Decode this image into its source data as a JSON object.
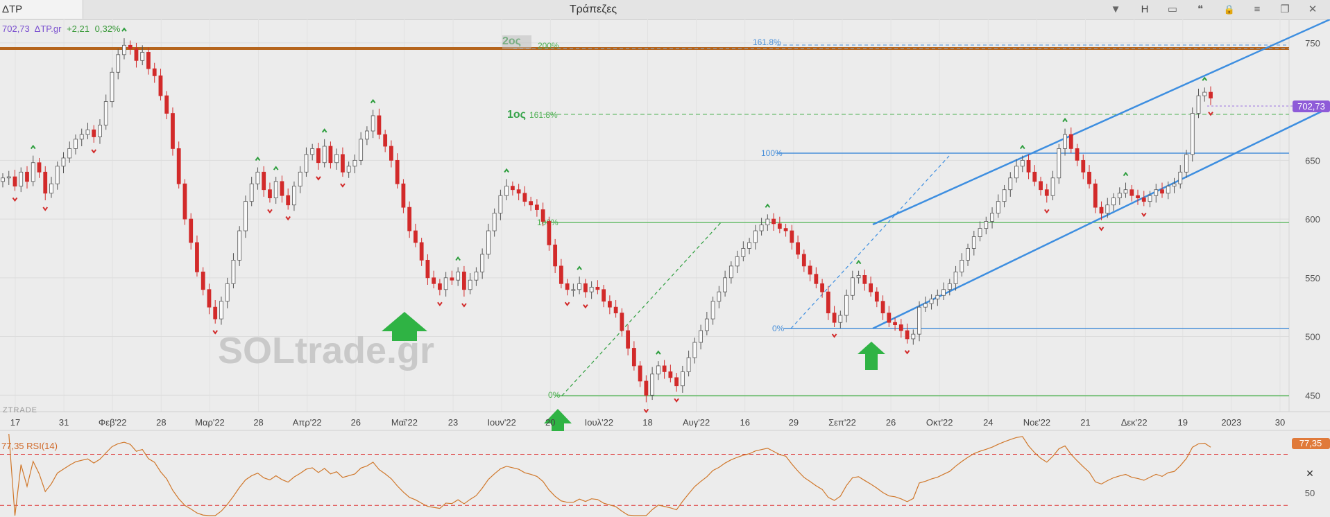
{
  "window": {
    "symbol_tab": "ΔTP",
    "title": "Τράπεζες",
    "buttons": {
      "dropdown": "▼",
      "h": "H",
      "window_icon": "▭",
      "quote_icon": "❝",
      "lock_icon": "🔒",
      "menu_icon": "≡",
      "restore_icon": "❐",
      "close_icon": "✕"
    }
  },
  "chart_data": [
    {
      "type": "candlestick",
      "header": {
        "last": "702,73",
        "symbol": "ΔTP.gr",
        "change": "+2,21",
        "change_pct": "0,32%"
      },
      "price_axis": {
        "ticks": [
          750,
          650,
          600,
          550,
          500,
          450
        ],
        "ylim": [
          436,
          770
        ]
      },
      "last_price_label": "702,73",
      "time_axis_labels": [
        "17",
        "31",
        "Φεβ'22",
        "28",
        "Μαρ'22",
        "28",
        "Απρ'22",
        "26",
        "Μαϊ'22",
        "23",
        "Ιουν'22",
        "20",
        "Ιουλ'22",
        "18",
        "Αυγ'22",
        "16",
        "29",
        "Σεπ'22",
        "26",
        "Οκτ'22",
        "24",
        "Νοε'22",
        "21",
        "Δεκ'22",
        "19",
        "2023",
        "30"
      ],
      "close_series": [
        635,
        636,
        628,
        640,
        632,
        648,
        640,
        622,
        630,
        645,
        652,
        660,
        668,
        672,
        676,
        670,
        680,
        700,
        725,
        740,
        748,
        745,
        735,
        742,
        728,
        722,
        705,
        690,
        660,
        630,
        600,
        580,
        555,
        540,
        525,
        515,
        530,
        545,
        565,
        590,
        615,
        630,
        640,
        625,
        618,
        632,
        620,
        612,
        628,
        640,
        655,
        660,
        648,
        662,
        648,
        655,
        640,
        645,
        650,
        668,
        675,
        688,
        672,
        662,
        650,
        630,
        610,
        590,
        580,
        565,
        550,
        545,
        540,
        550,
        548,
        555,
        540,
        548,
        555,
        570,
        590,
        605,
        620,
        628,
        625,
        622,
        615,
        612,
        608,
        598,
        578,
        560,
        545,
        540,
        540,
        545,
        538,
        542,
        540,
        530,
        525,
        520,
        505,
        490,
        475,
        462,
        450,
        468,
        475,
        470,
        465,
        458,
        470,
        482,
        495,
        505,
        515,
        530,
        538,
        550,
        560,
        568,
        575,
        580,
        590,
        595,
        600,
        596,
        592,
        590,
        580,
        570,
        560,
        553,
        545,
        538,
        520,
        512,
        518,
        535,
        550,
        552,
        545,
        538,
        530,
        520,
        512,
        510,
        505,
        498,
        502,
        525,
        528,
        532,
        535,
        540,
        545,
        555,
        565,
        575,
        585,
        592,
        598,
        605,
        615,
        625,
        635,
        645,
        650,
        640,
        632,
        625,
        620,
        635,
        660,
        672,
        660,
        650,
        640,
        630,
        610,
        605,
        612,
        618,
        622,
        625,
        620,
        618,
        615,
        620,
        625,
        622,
        628,
        630,
        640,
        655,
        690,
        705,
        708,
        703
      ],
      "events": [
        "2ος",
        "1ος"
      ],
      "fib_labels": [
        "161.8%",
        "200%",
        "161.8%",
        "100%",
        "100%",
        "0%",
        "0%"
      ],
      "watermark": "SOLtrade.gr",
      "source_tag": "ZTRADE"
    },
    {
      "type": "line",
      "name": "RSI",
      "label": "77,35 RSI(14)",
      "value_label": "77,35",
      "ticks": [
        50
      ],
      "levels": [
        70,
        30
      ],
      "ylim": [
        22,
        86
      ],
      "close_icon": "✕"
    }
  ]
}
